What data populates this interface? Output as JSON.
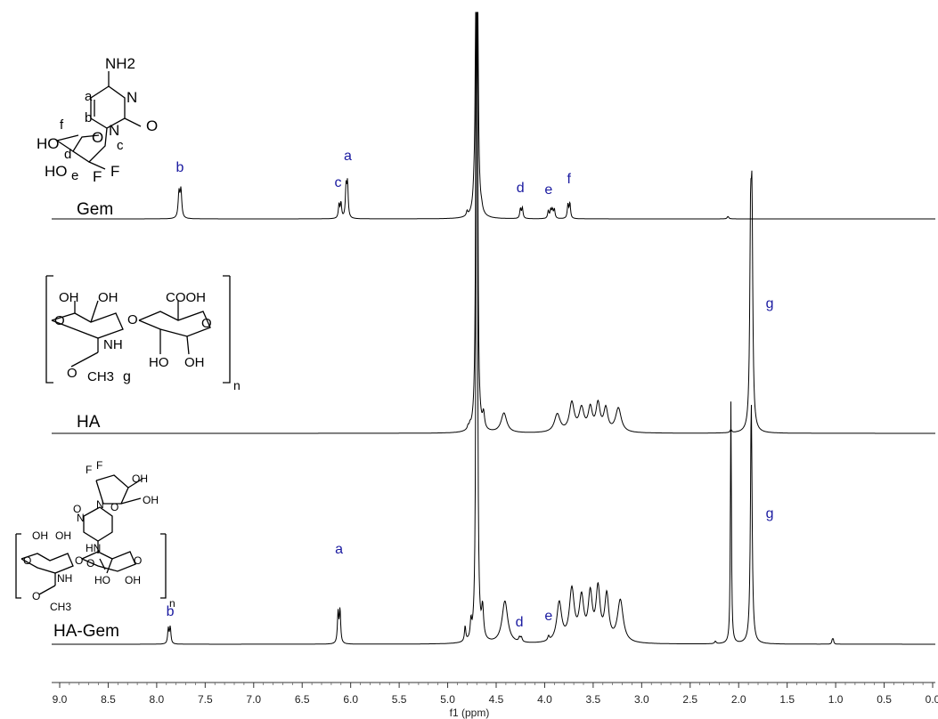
{
  "chart_data": {
    "type": "line",
    "xlabel": "f1 (ppm)",
    "xlim": [
      9.2,
      -0.05
    ],
    "x_ticks": [
      "9.0",
      "8.5",
      "8.0",
      "7.5",
      "7.0",
      "6.5",
      "6.0",
      "5.5",
      "5.0",
      "4.5",
      "4.0",
      "3.5",
      "3.0",
      "2.5",
      "2.0",
      "1.5",
      "1.0",
      "0.5",
      "0.0"
    ],
    "grid": false,
    "legend": "none",
    "label_color": "#1a1aa0",
    "line_color": "#000000",
    "series": [
      {
        "name": "Gem",
        "peaks": [
          {
            "ppm": 7.76,
            "height": 0.9,
            "width": 0.01,
            "split": 0.02
          },
          {
            "ppm": 6.11,
            "height": 0.5,
            "width": 0.008,
            "split": 0.02
          },
          {
            "ppm": 6.04,
            "height": 1.1,
            "width": 0.008,
            "split": 0.015
          },
          {
            "ppm": 4.8,
            "height": 0.15,
            "width": 0.008,
            "split": 0.0
          },
          {
            "ppm": 4.73,
            "height": 0.2,
            "width": 0.008,
            "split": 0.0
          },
          {
            "ppm": 4.65,
            "height": 0.12,
            "width": 0.01,
            "split": 0.0
          },
          {
            "ppm": 4.24,
            "height": 0.35,
            "width": 0.008,
            "split": 0.02
          },
          {
            "ppm": 3.95,
            "height": 0.28,
            "width": 0.008,
            "split": 0.025
          },
          {
            "ppm": 3.91,
            "height": 0.3,
            "width": 0.008,
            "split": 0.02
          },
          {
            "ppm": 3.75,
            "height": 0.5,
            "width": 0.008,
            "split": 0.02
          },
          {
            "ppm": 2.11,
            "height": 0.08,
            "width": 0.01,
            "split": 0.0
          }
        ],
        "labels": [
          {
            "ppm": 7.76,
            "text": "b"
          },
          {
            "ppm": 6.13,
            "text": "c"
          },
          {
            "ppm": 6.03,
            "text": "a"
          },
          {
            "ppm": 4.25,
            "text": "d"
          },
          {
            "ppm": 3.96,
            "text": "e"
          },
          {
            "ppm": 3.75,
            "text": "f"
          }
        ]
      },
      {
        "name": "HA",
        "peaks": [
          {
            "ppm": 4.78,
            "height": 0.12,
            "width": 0.008,
            "split": 0.02
          },
          {
            "ppm": 4.63,
            "height": 0.5,
            "width": 0.012,
            "split": 0.0
          },
          {
            "ppm": 4.42,
            "height": 0.65,
            "width": 0.035,
            "split": 0.0
          },
          {
            "ppm": 3.87,
            "height": 0.6,
            "width": 0.035,
            "split": 0.0
          },
          {
            "ppm": 3.72,
            "height": 0.95,
            "width": 0.03,
            "split": 0.0
          },
          {
            "ppm": 3.62,
            "height": 0.75,
            "width": 0.03,
            "split": 0.0
          },
          {
            "ppm": 3.53,
            "height": 0.75,
            "width": 0.025,
            "split": 0.0
          },
          {
            "ppm": 3.45,
            "height": 0.9,
            "width": 0.025,
            "split": 0.0
          },
          {
            "ppm": 3.37,
            "height": 0.75,
            "width": 0.025,
            "split": 0.0
          },
          {
            "ppm": 3.24,
            "height": 0.8,
            "width": 0.035,
            "split": 0.0
          },
          {
            "ppm": 2.08,
            "height": 0.1,
            "width": 0.01,
            "split": 0.0
          },
          {
            "ppm": 1.87,
            "height": 6.5,
            "width": 0.01,
            "split": 0.014
          }
        ],
        "labels": [
          {
            "ppm": 1.68,
            "text": "g"
          }
        ]
      },
      {
        "name": "HA-Gem",
        "peaks": [
          {
            "ppm": 7.87,
            "height": 0.55,
            "width": 0.008,
            "split": 0.02
          },
          {
            "ppm": 6.12,
            "height": 1.1,
            "width": 0.008,
            "split": 0.02
          },
          {
            "ppm": 4.82,
            "height": 0.5,
            "width": 0.008,
            "split": 0.0
          },
          {
            "ppm": 4.76,
            "height": 0.55,
            "width": 0.008,
            "split": 0.0
          },
          {
            "ppm": 4.64,
            "height": 1.0,
            "width": 0.012,
            "split": 0.0
          },
          {
            "ppm": 4.41,
            "height": 1.4,
            "width": 0.035,
            "split": 0.0
          },
          {
            "ppm": 4.25,
            "height": 0.15,
            "width": 0.01,
            "split": 0.02
          },
          {
            "ppm": 3.96,
            "height": 0.15,
            "width": 0.01,
            "split": 0.0
          },
          {
            "ppm": 3.85,
            "height": 1.3,
            "width": 0.03,
            "split": 0.0
          },
          {
            "ppm": 3.72,
            "height": 1.7,
            "width": 0.03,
            "split": 0.0
          },
          {
            "ppm": 3.62,
            "height": 1.4,
            "width": 0.028,
            "split": 0.0
          },
          {
            "ppm": 3.53,
            "height": 1.5,
            "width": 0.025,
            "split": 0.0
          },
          {
            "ppm": 3.45,
            "height": 1.7,
            "width": 0.025,
            "split": 0.0
          },
          {
            "ppm": 3.36,
            "height": 1.5,
            "width": 0.025,
            "split": 0.0
          },
          {
            "ppm": 3.22,
            "height": 1.4,
            "width": 0.035,
            "split": 0.0
          },
          {
            "ppm": 2.24,
            "height": 0.08,
            "width": 0.01,
            "split": 0.0
          },
          {
            "ppm": 2.08,
            "height": 8.0,
            "width": 0.006,
            "split": 0.0
          },
          {
            "ppm": 1.87,
            "height": 8.0,
            "width": 0.01,
            "split": 0.0
          },
          {
            "ppm": 1.03,
            "height": 0.15,
            "width": 0.006,
            "split": 0.01
          }
        ],
        "labels": [
          {
            "ppm": 7.86,
            "text": "b"
          },
          {
            "ppm": 6.12,
            "text": "a"
          },
          {
            "ppm": 4.26,
            "text": "d"
          },
          {
            "ppm": 3.96,
            "text": "e"
          },
          {
            "ppm": 1.68,
            "text": "g"
          }
        ]
      }
    ],
    "structures": [
      {
        "name": "Gem",
        "labels": [
          "NH2",
          "N",
          "O",
          "N",
          "a",
          "b",
          "HO",
          "f",
          "O",
          "c",
          "d",
          "HO",
          "e",
          "F",
          "F"
        ]
      },
      {
        "name": "HA",
        "labels": [
          "OH",
          "OH",
          "COOH",
          "O",
          "O",
          "NH",
          "O",
          "O",
          "HO",
          "OH",
          "CH3",
          "g",
          "n"
        ]
      },
      {
        "name": "HA-Gem",
        "labels": [
          "F",
          "F",
          "OH",
          "OH",
          "O",
          "N",
          "N",
          "O",
          "HN",
          "O",
          "OH",
          "OH",
          "O",
          "O",
          "O",
          "NH",
          "O",
          "HO",
          "OH",
          "CH3",
          "n"
        ]
      }
    ]
  }
}
